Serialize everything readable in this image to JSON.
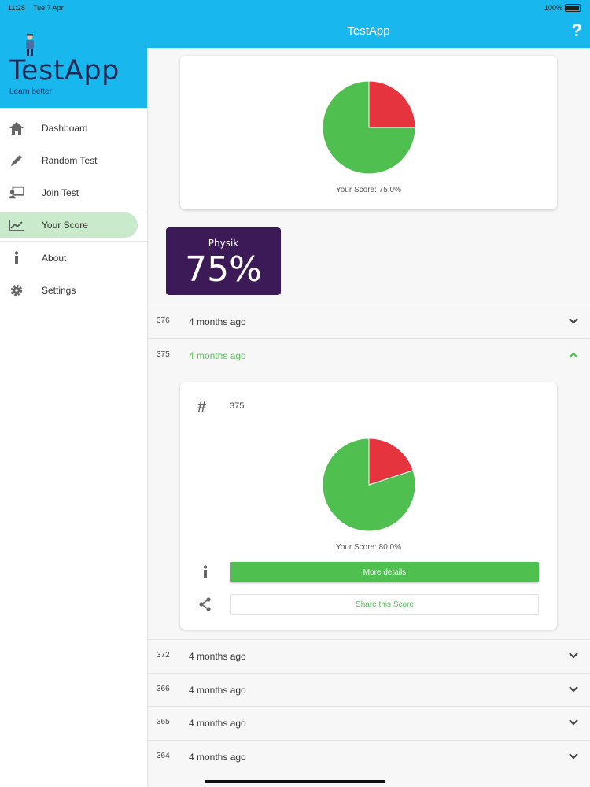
{
  "status": {
    "time": "11:28",
    "date": "Tue 7 Apr",
    "battery": "100%"
  },
  "sidebar": {
    "brand": "TestApp",
    "tagline": "Learn better",
    "items": [
      {
        "label": "Dashboard",
        "icon": "home-icon"
      },
      {
        "label": "Random Test",
        "icon": "pencil-icon"
      },
      {
        "label": "Join Test",
        "icon": "presentation-icon"
      },
      {
        "label": "Your Score",
        "icon": "chart-line-icon",
        "active": true
      },
      {
        "label": "About",
        "icon": "info-icon"
      },
      {
        "label": "Settings",
        "icon": "gear-icon"
      }
    ]
  },
  "topbar": {
    "title": "TestApp",
    "help": "?"
  },
  "summary": {
    "score_text": "Your Score: 75.0%",
    "score_fraction": 0.75,
    "subject": "Physik",
    "subject_pct": "75%"
  },
  "rows": [
    {
      "id": "376",
      "when": "4 months ago",
      "open": false
    },
    {
      "id": "375",
      "when": "4 months ago",
      "open": true
    },
    {
      "id": "372",
      "when": "4 months ago",
      "open": false
    },
    {
      "id": "366",
      "when": "4 months ago",
      "open": false
    },
    {
      "id": "365",
      "when": "4 months ago",
      "open": false
    },
    {
      "id": "364",
      "when": "4 months ago",
      "open": false
    }
  ],
  "detail": {
    "hash": "#",
    "number": "375",
    "score_text": "Your Score: 80.0%",
    "score_fraction": 0.8,
    "more_details": "More details",
    "share": "Share this Score"
  },
  "colors": {
    "accent": "#18b8ef",
    "correct": "#4fbf4f",
    "wrong": "#e5343d",
    "tile": "#3c1a57"
  }
}
